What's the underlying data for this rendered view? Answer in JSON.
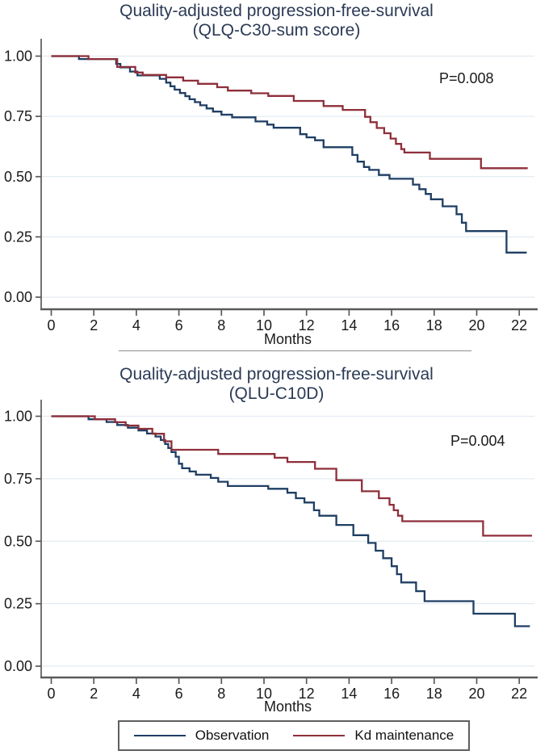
{
  "colors": {
    "observation": "#1f3e63",
    "kd_maintenance": "#8e2f3a",
    "grid": "#e3ebf1",
    "axis": "#5a5a5a",
    "text": "#1a1a1a",
    "title": "#2b3a55",
    "background": "#ffffff"
  },
  "legend": {
    "position": "bottom",
    "items": [
      {
        "label": "Observation",
        "color": "#1f3e63"
      },
      {
        "label": "Kd maintenance",
        "color": "#8e2f3a"
      }
    ]
  },
  "chart_data": [
    {
      "type": "line",
      "subtype": "kaplan-meier-step",
      "title_line1": "Quality-adjusted progression-free-survival",
      "title_line2": "(QLQ-C30-sum score)",
      "p_value": "P=0.008",
      "xlabel": "Months",
      "xlim": [
        0,
        23
      ],
      "ylim": [
        0,
        1
      ],
      "grid": true,
      "x_ticks": [
        0,
        2,
        4,
        6,
        8,
        10,
        12,
        14,
        16,
        18,
        20,
        22
      ],
      "y_ticks": [
        {
          "value": 1.0,
          "label": "1.00"
        },
        {
          "value": 0.75,
          "label": "0.75"
        },
        {
          "value": 0.5,
          "label": "0.50"
        },
        {
          "value": 0.25,
          "label": "0.25"
        },
        {
          "value": 0.0,
          "label": "0.00"
        }
      ],
      "series": [
        {
          "name": "Observation",
          "color": "#1f3e63",
          "t_end": 22.35,
          "points": [
            [
              0,
              1.0
            ],
            [
              1.3,
              0.988
            ],
            [
              3.05,
              0.968
            ],
            [
              3.25,
              0.953
            ],
            [
              3.7,
              0.936
            ],
            [
              4.05,
              0.92
            ],
            [
              5.1,
              0.906
            ],
            [
              5.4,
              0.89
            ],
            [
              5.6,
              0.875
            ],
            [
              5.8,
              0.861
            ],
            [
              6.05,
              0.847
            ],
            [
              6.3,
              0.834
            ],
            [
              6.5,
              0.821
            ],
            [
              6.75,
              0.809
            ],
            [
              7.0,
              0.796
            ],
            [
              7.3,
              0.783
            ],
            [
              7.6,
              0.77
            ],
            [
              8.0,
              0.757
            ],
            [
              8.5,
              0.746
            ],
            [
              9.6,
              0.729
            ],
            [
              10.15,
              0.716
            ],
            [
              10.45,
              0.703
            ],
            [
              11.7,
              0.676
            ],
            [
              12.0,
              0.663
            ],
            [
              12.4,
              0.651
            ],
            [
              12.8,
              0.622
            ],
            [
              14.15,
              0.59
            ],
            [
              14.4,
              0.562
            ],
            [
              14.7,
              0.54
            ],
            [
              14.95,
              0.528
            ],
            [
              15.4,
              0.507
            ],
            [
              15.9,
              0.491
            ],
            [
              17.0,
              0.467
            ],
            [
              17.3,
              0.448
            ],
            [
              17.6,
              0.428
            ],
            [
              17.85,
              0.406
            ],
            [
              18.4,
              0.377
            ],
            [
              19.05,
              0.344
            ],
            [
              19.3,
              0.309
            ],
            [
              19.5,
              0.274
            ],
            [
              21.4,
              0.185
            ]
          ]
        },
        {
          "name": "Kd maintenance",
          "color": "#8e2f3a",
          "t_end": 22.4,
          "points": [
            [
              0,
              1.0
            ],
            [
              1.75,
              0.988
            ],
            [
              3.1,
              0.955
            ],
            [
              3.95,
              0.932
            ],
            [
              4.3,
              0.922
            ],
            [
              5.4,
              0.912
            ],
            [
              6.2,
              0.898
            ],
            [
              6.9,
              0.885
            ],
            [
              7.8,
              0.871
            ],
            [
              8.3,
              0.857
            ],
            [
              9.4,
              0.846
            ],
            [
              10.2,
              0.835
            ],
            [
              11.4,
              0.814
            ],
            [
              12.8,
              0.793
            ],
            [
              13.7,
              0.777
            ],
            [
              14.75,
              0.748
            ],
            [
              15.0,
              0.726
            ],
            [
              15.3,
              0.702
            ],
            [
              15.65,
              0.68
            ],
            [
              15.95,
              0.658
            ],
            [
              16.2,
              0.636
            ],
            [
              16.45,
              0.614
            ],
            [
              16.6,
              0.6
            ],
            [
              17.8,
              0.574
            ],
            [
              20.2,
              0.535
            ]
          ]
        }
      ]
    },
    {
      "type": "line",
      "subtype": "kaplan-meier-step",
      "title_line1": "Quality-adjusted progression-free-survival",
      "title_line2": "(QLU-C10D)",
      "p_value": "P=0.004",
      "xlabel": "Months",
      "xlim": [
        0,
        23
      ],
      "ylim": [
        0,
        1
      ],
      "grid": true,
      "x_ticks": [
        0,
        2,
        4,
        6,
        8,
        10,
        12,
        14,
        16,
        18,
        20,
        22
      ],
      "y_ticks": [
        {
          "value": 1.0,
          "label": "1.00"
        },
        {
          "value": 0.75,
          "label": "0.75"
        },
        {
          "value": 0.5,
          "label": "0.50"
        },
        {
          "value": 0.25,
          "label": "0.25"
        },
        {
          "value": 0.0,
          "label": "0.00"
        }
      ],
      "series": [
        {
          "name": "Observation",
          "color": "#1f3e63",
          "t_end": 22.5,
          "points": [
            [
              0,
              1.0
            ],
            [
              1.75,
              0.988
            ],
            [
              2.6,
              0.977
            ],
            [
              3.1,
              0.965
            ],
            [
              3.6,
              0.954
            ],
            [
              4.1,
              0.943
            ],
            [
              4.5,
              0.931
            ],
            [
              4.9,
              0.919
            ],
            [
              5.15,
              0.905
            ],
            [
              5.35,
              0.889
            ],
            [
              5.5,
              0.873
            ],
            [
              5.65,
              0.857
            ],
            [
              5.85,
              0.838
            ],
            [
              6.0,
              0.81
            ],
            [
              6.15,
              0.792
            ],
            [
              6.5,
              0.779
            ],
            [
              6.8,
              0.766
            ],
            [
              7.5,
              0.753
            ],
            [
              7.85,
              0.738
            ],
            [
              8.3,
              0.721
            ],
            [
              10.2,
              0.71
            ],
            [
              11.1,
              0.694
            ],
            [
              11.5,
              0.672
            ],
            [
              11.9,
              0.655
            ],
            [
              12.35,
              0.624
            ],
            [
              12.6,
              0.602
            ],
            [
              13.4,
              0.565
            ],
            [
              14.2,
              0.524
            ],
            [
              14.9,
              0.493
            ],
            [
              15.25,
              0.462
            ],
            [
              15.6,
              0.432
            ],
            [
              16.0,
              0.4
            ],
            [
              16.25,
              0.368
            ],
            [
              16.45,
              0.335
            ],
            [
              17.15,
              0.3
            ],
            [
              17.55,
              0.26
            ],
            [
              19.85,
              0.21
            ],
            [
              21.8,
              0.16
            ]
          ]
        },
        {
          "name": "Kd maintenance",
          "color": "#8e2f3a",
          "t_end": 22.6,
          "points": [
            [
              0,
              1.0
            ],
            [
              2.05,
              0.988
            ],
            [
              3.0,
              0.976
            ],
            [
              3.5,
              0.963
            ],
            [
              4.1,
              0.95
            ],
            [
              4.75,
              0.93
            ],
            [
              5.3,
              0.9
            ],
            [
              5.65,
              0.866
            ],
            [
              7.85,
              0.849
            ],
            [
              10.5,
              0.834
            ],
            [
              11.1,
              0.817
            ],
            [
              12.4,
              0.79
            ],
            [
              13.4,
              0.744
            ],
            [
              14.6,
              0.7
            ],
            [
              15.4,
              0.672
            ],
            [
              15.9,
              0.646
            ],
            [
              16.1,
              0.624
            ],
            [
              16.3,
              0.602
            ],
            [
              16.5,
              0.58
            ],
            [
              20.3,
              0.522
            ]
          ]
        }
      ]
    }
  ]
}
